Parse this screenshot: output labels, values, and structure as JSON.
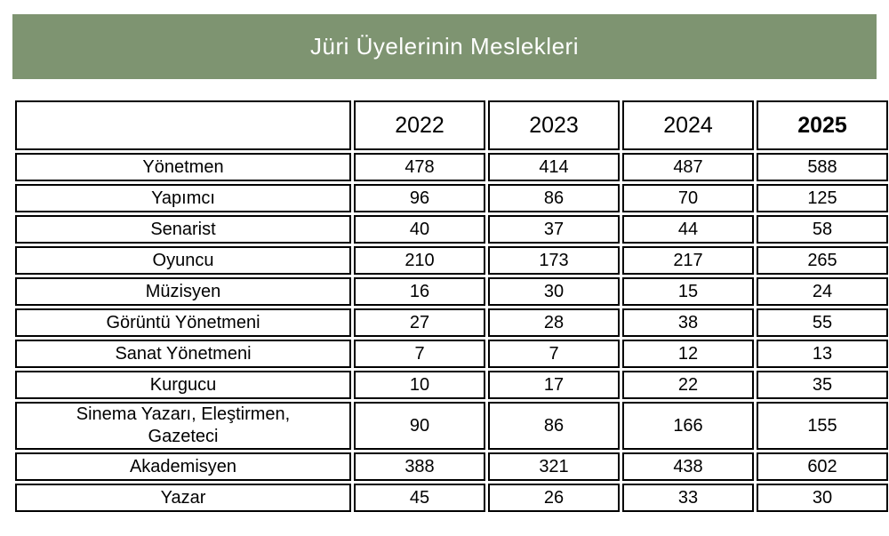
{
  "banner": {
    "title": "Jüri Üyelerinin Meslekleri",
    "background": "#7E9471",
    "text_color": "#FFFFFF"
  },
  "table": {
    "header": {
      "corner_label": "",
      "year_colors": {
        "2022": "#DDB6A9",
        "2023": "#C9E3D3",
        "2024": "#D8910D",
        "2025": "#FCF6BC"
      },
      "bold_year": "2025"
    },
    "border_color": "#000000",
    "cell_background": "#FFFFFF"
  },
  "chart_data": {
    "type": "table",
    "title": "Jüri Üyelerinin Meslekleri",
    "columns": [
      "",
      "2022",
      "2023",
      "2024",
      "2025"
    ],
    "rows": [
      {
        "label": "Yönetmen",
        "values": [
          478,
          414,
          487,
          588
        ]
      },
      {
        "label": "Yapımcı",
        "values": [
          96,
          86,
          70,
          125
        ]
      },
      {
        "label": "Senarist",
        "values": [
          40,
          37,
          44,
          58
        ]
      },
      {
        "label": "Oyuncu",
        "values": [
          210,
          173,
          217,
          265
        ]
      },
      {
        "label": "Müzisyen",
        "values": [
          16,
          30,
          15,
          24
        ]
      },
      {
        "label": "Görüntü Yönetmeni",
        "values": [
          27,
          28,
          38,
          55
        ]
      },
      {
        "label": "Sanat Yönetmeni",
        "values": [
          7,
          7,
          12,
          13
        ]
      },
      {
        "label": "Kurgucu",
        "values": [
          10,
          17,
          22,
          35
        ]
      },
      {
        "label": "Sinema Yazarı, Eleştirmen,\nGazeteci",
        "values": [
          90,
          86,
          166,
          155
        ]
      },
      {
        "label": "Akademisyen",
        "values": [
          388,
          321,
          438,
          602
        ]
      },
      {
        "label": "Yazar",
        "values": [
          45,
          26,
          33,
          30
        ]
      }
    ]
  }
}
